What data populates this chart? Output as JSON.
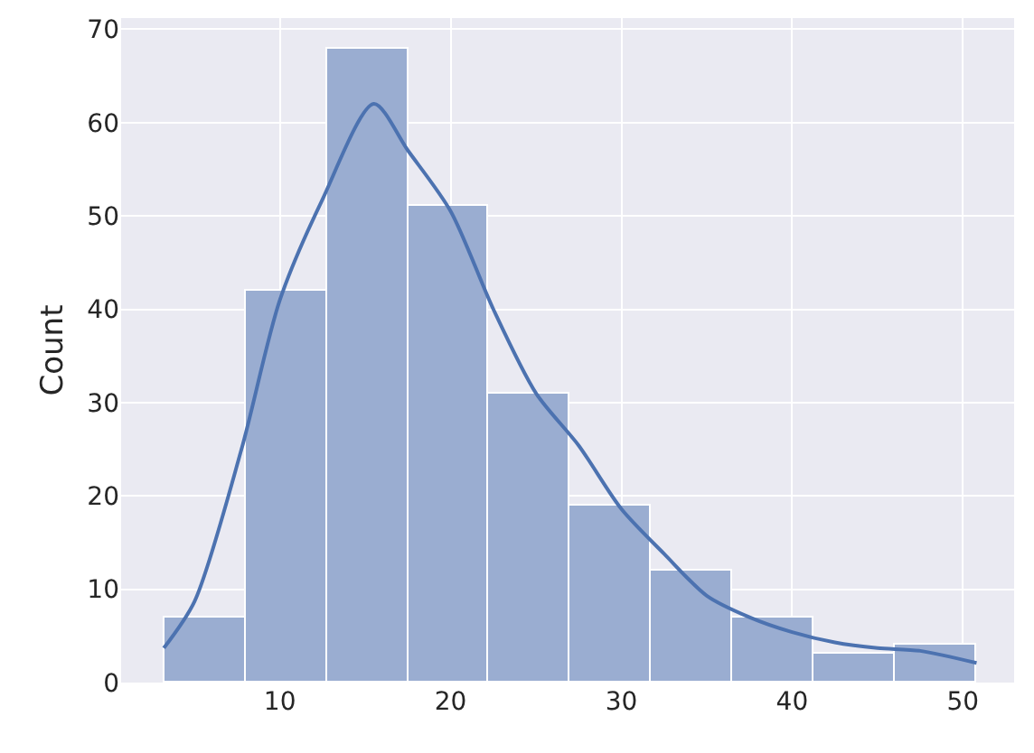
{
  "chart_data": {
    "type": "histogram",
    "ylabel": "Count",
    "bins": [
      3.2,
      7.96,
      12.72,
      17.48,
      22.24,
      27.0,
      31.76,
      36.52,
      41.28,
      46.04,
      50.8
    ],
    "series": [
      {
        "color": "#9aadd1",
        "values": [
          7,
          42,
          68,
          51,
          31,
          19,
          12,
          7,
          3,
          4
        ]
      },
      {
        "type": "line",
        "color": "#4c72b0",
        "x": [
          3.2,
          5,
          7.75,
          10,
          12.5,
          15.5,
          17.5,
          20,
          22.5,
          25,
          27.5,
          30,
          32.5,
          35,
          37.5,
          40,
          42.5,
          45,
          47.5,
          50.8
        ],
        "values": [
          3.7,
          8.7,
          25,
          41,
          51.8,
          62,
          57,
          50.5,
          40,
          31,
          25.4,
          18.6,
          13.8,
          9.3,
          7,
          5.4,
          4.3,
          3.7,
          3.4,
          2.1
        ]
      }
    ],
    "xlim": [
      0.7,
      53.0
    ],
    "xticks": [
      10,
      20,
      30,
      40,
      50
    ],
    "ylim": [
      0,
      71.2
    ],
    "yticks": [
      0,
      10,
      20,
      30,
      40,
      50,
      60,
      70
    ],
    "grid": true,
    "marker": "none",
    "line_style": "solid"
  }
}
